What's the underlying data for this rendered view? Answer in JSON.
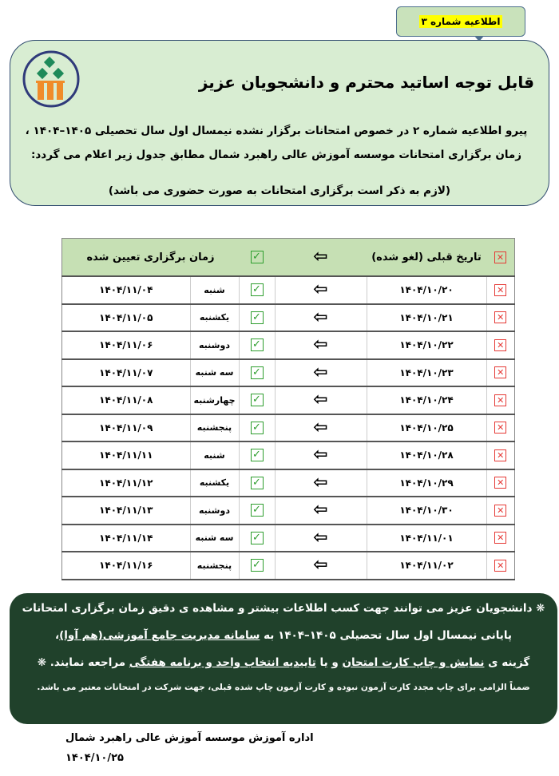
{
  "tab_label": "اطلاعیه شماره ۳",
  "logo_text": "موسسه آموزش عالی راهبرد شمال",
  "title": "قابل توجه اساتید محترم و دانشجویان عزیز",
  "intro_line1": "پیرو اطلاعیه شماره ۲ در خصوص امتحانات برگزار نشده نیمسال اول سال تحصیلی ۱۴۰۵–۱۴۰۴ ،",
  "intro_line2": "زمان برگزاری امتحانات موسسه آموزش عالی راهبرد شمال مطابق جدول زیر اعلام می گردد:",
  "note": "(لازم به ذکر است برگزاری امتحانات به صورت حضوری می باشد)",
  "table": {
    "header_old": "تاریخ قبلی (لغو شده)",
    "header_new": "زمان برگزاری تعیین شده",
    "rows": [
      {
        "old": "۱۴۰۴/۱۰/۲۰",
        "day": "شنبه",
        "new": "۱۴۰۴/۱۱/۰۴"
      },
      {
        "old": "۱۴۰۴/۱۰/۲۱",
        "day": "یکشنبه",
        "new": "۱۴۰۴/۱۱/۰۵"
      },
      {
        "old": "۱۴۰۴/۱۰/۲۲",
        "day": "دوشنبه",
        "new": "۱۴۰۴/۱۱/۰۶"
      },
      {
        "old": "۱۴۰۴/۱۰/۲۳",
        "day": "سه شنبه",
        "new": "۱۴۰۴/۱۱/۰۷"
      },
      {
        "old": "۱۴۰۴/۱۰/۲۴",
        "day": "چهارشنبه",
        "new": "۱۴۰۴/۱۱/۰۸"
      },
      {
        "old": "۱۴۰۴/۱۰/۲۵",
        "day": "پنجشنبه",
        "new": "۱۴۰۴/۱۱/۰۹"
      },
      {
        "old": "۱۴۰۴/۱۰/۲۸",
        "day": "شنبه",
        "new": "۱۴۰۴/۱۱/۱۱"
      },
      {
        "old": "۱۴۰۴/۱۰/۲۹",
        "day": "یکشنبه",
        "new": "۱۴۰۴/۱۱/۱۲"
      },
      {
        "old": "۱۴۰۴/۱۰/۳۰",
        "day": "دوشنبه",
        "new": "۱۴۰۴/۱۱/۱۳"
      },
      {
        "old": "۱۴۰۴/۱۱/۰۱",
        "day": "سه شنبه",
        "new": "۱۴۰۴/۱۱/۱۴"
      },
      {
        "old": "۱۴۰۴/۱۱/۰۲",
        "day": "پنجشنبه",
        "new": "۱۴۰۴/۱۱/۱۶"
      }
    ]
  },
  "info": {
    "line1": "دانشجویان عزیز می توانند جهت کسب اطلاعات بیشتر و مشاهده ی دقیق زمان برگزاری امتحانات",
    "line2_a": "پایانی نیمسال اول سال تحصیلی ۱۴۰۵–۱۴۰۴ به",
    "line2_u": "سامانه مدیریت جامع آموزشی(هم آوا)",
    "line2_b": "،",
    "line3_a": "گزینه ی",
    "line3_u1": "نمایش و چاپ کارت امتحان",
    "line3_b": "و یا",
    "line3_u2": "تاییدیه انتخاب واحد و برنامه هفتگی",
    "line3_c": "مراجعه نمایند.",
    "star": "❋",
    "small": "ضمناً الزامی برای چاپ مجدد کارت آزمون نبوده و کارت آزمون چاپ شده قبلی، جهت شرکت در امتحانات معتبر می باشد."
  },
  "footer": {
    "signature": "اداره آموزش موسسه آموزش عالی راهبرد شمال",
    "date": "۱۴۰۴/۱۰/۲۵"
  },
  "colors": {
    "panel": "#d8edd2",
    "dark_panel": "#20412b",
    "header_row": "#c6e0b4",
    "cross": "#e53935",
    "check": "#2e9e2e",
    "highlight": "#ffff00"
  }
}
